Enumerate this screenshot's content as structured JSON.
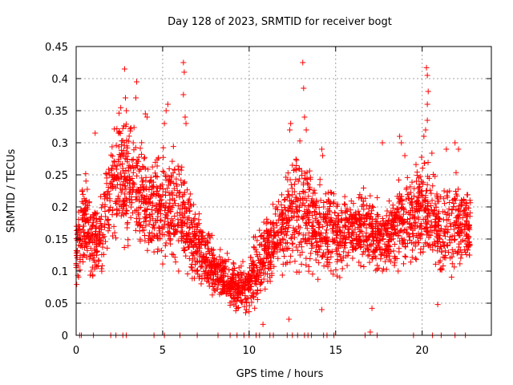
{
  "chart_data": {
    "type": "scatter",
    "title": "Day 128 of 2023, SRMTID for receiver bogt",
    "xlabel": "GPS time / hours",
    "ylabel": "SRMTID / TECUs",
    "xlim": [
      0,
      24
    ],
    "ylim": [
      0,
      0.45
    ],
    "xticks": [
      0,
      5,
      10,
      15,
      20
    ],
    "xtick_labels": [
      "0",
      "5",
      "10",
      "15",
      "20"
    ],
    "yticks": [
      0,
      0.05,
      0.1,
      0.15,
      0.2,
      0.25,
      0.3,
      0.35,
      0.4,
      0.45
    ],
    "ytick_labels": [
      "0",
      "0.05",
      "0.1",
      "0.15",
      "0.2",
      "0.25",
      "0.3",
      "0.35",
      "0.4",
      "0.45"
    ],
    "grid": true,
    "marker": "plus",
    "color": "#ff0000",
    "profile": {
      "x": [
        0,
        0.5,
        1,
        1.5,
        2,
        2.5,
        3,
        3.5,
        4,
        4.5,
        5,
        5.5,
        6,
        6.5,
        7,
        7.5,
        8,
        8.5,
        9,
        9.5,
        10,
        10.5,
        11,
        11.5,
        12,
        12.5,
        13,
        13.5,
        14,
        14.5,
        15,
        15.5,
        16,
        16.5,
        17,
        17.5,
        18,
        18.5,
        19,
        19.5,
        20,
        20.5,
        21,
        21.5,
        22,
        22.8
      ],
      "mean": [
        0.13,
        0.18,
        0.14,
        0.16,
        0.22,
        0.25,
        0.24,
        0.23,
        0.2,
        0.2,
        0.21,
        0.2,
        0.19,
        0.16,
        0.14,
        0.12,
        0.1,
        0.09,
        0.08,
        0.07,
        0.08,
        0.11,
        0.13,
        0.14,
        0.17,
        0.19,
        0.2,
        0.18,
        0.17,
        0.16,
        0.16,
        0.16,
        0.17,
        0.17,
        0.16,
        0.15,
        0.16,
        0.17,
        0.18,
        0.18,
        0.2,
        0.2,
        0.16,
        0.17,
        0.18,
        0.16
      ],
      "spread": [
        0.05,
        0.06,
        0.06,
        0.06,
        0.07,
        0.08,
        0.09,
        0.08,
        0.07,
        0.07,
        0.08,
        0.08,
        0.07,
        0.06,
        0.05,
        0.04,
        0.035,
        0.03,
        0.03,
        0.03,
        0.035,
        0.05,
        0.05,
        0.05,
        0.07,
        0.08,
        0.08,
        0.07,
        0.06,
        0.06,
        0.05,
        0.05,
        0.05,
        0.05,
        0.05,
        0.05,
        0.05,
        0.05,
        0.06,
        0.06,
        0.07,
        0.07,
        0.06,
        0.06,
        0.06,
        0.05
      ],
      "samples_per_hour": 130,
      "x_end": 22.8
    },
    "peak_points": [
      {
        "x": 2.8,
        "y": 0.415
      },
      {
        "x": 2.85,
        "y": 0.37
      },
      {
        "x": 2.9,
        "y": 0.35
      },
      {
        "x": 3.5,
        "y": 0.395
      },
      {
        "x": 3.45,
        "y": 0.37
      },
      {
        "x": 3.3,
        "y": 0.3
      },
      {
        "x": 4.0,
        "y": 0.345
      },
      {
        "x": 4.1,
        "y": 0.34
      },
      {
        "x": 5.2,
        "y": 0.35
      },
      {
        "x": 5.3,
        "y": 0.36
      },
      {
        "x": 5.1,
        "y": 0.33
      },
      {
        "x": 6.2,
        "y": 0.425
      },
      {
        "x": 6.25,
        "y": 0.41
      },
      {
        "x": 6.2,
        "y": 0.375
      },
      {
        "x": 6.3,
        "y": 0.34
      },
      {
        "x": 6.35,
        "y": 0.33
      },
      {
        "x": 1.1,
        "y": 0.315
      },
      {
        "x": 12.4,
        "y": 0.33
      },
      {
        "x": 12.35,
        "y": 0.32
      },
      {
        "x": 13.1,
        "y": 0.425
      },
      {
        "x": 13.15,
        "y": 0.385
      },
      {
        "x": 13.2,
        "y": 0.34
      },
      {
        "x": 13.3,
        "y": 0.32
      },
      {
        "x": 14.2,
        "y": 0.29
      },
      {
        "x": 14.25,
        "y": 0.28
      },
      {
        "x": 17.7,
        "y": 0.3
      },
      {
        "x": 18.7,
        "y": 0.31
      },
      {
        "x": 18.8,
        "y": 0.3
      },
      {
        "x": 19.0,
        "y": 0.28
      },
      {
        "x": 20.1,
        "y": 0.31
      },
      {
        "x": 20.2,
        "y": 0.32
      },
      {
        "x": 20.25,
        "y": 0.417
      },
      {
        "x": 20.3,
        "y": 0.405
      },
      {
        "x": 20.35,
        "y": 0.38
      },
      {
        "x": 20.3,
        "y": 0.36
      },
      {
        "x": 20.3,
        "y": 0.335
      },
      {
        "x": 21.4,
        "y": 0.29
      },
      {
        "x": 21.9,
        "y": 0.3
      },
      {
        "x": 22.1,
        "y": 0.29
      },
      {
        "x": 10.8,
        "y": 0.017
      },
      {
        "x": 12.3,
        "y": 0.025
      },
      {
        "x": 14.2,
        "y": 0.04
      },
      {
        "x": 17.0,
        "y": 0.005
      },
      {
        "x": 17.1,
        "y": 0.042
      },
      {
        "x": 20.9,
        "y": 0.048
      }
    ],
    "zero_points_x": [
      0.2,
      0.3,
      1.0,
      2.0,
      2.3,
      2.7,
      2.9,
      4.5,
      5.1,
      6.0,
      7.0,
      8.2,
      8.9,
      9.3,
      9.7,
      10.0,
      10.4,
      10.6,
      11.2,
      11.4,
      12.2,
      12.5,
      12.8,
      13.2,
      13.4,
      13.6,
      14.3,
      14.5,
      14.9,
      16.7,
      17.4,
      19.5,
      20.6,
      21.1,
      21.9,
      22.5
    ]
  }
}
